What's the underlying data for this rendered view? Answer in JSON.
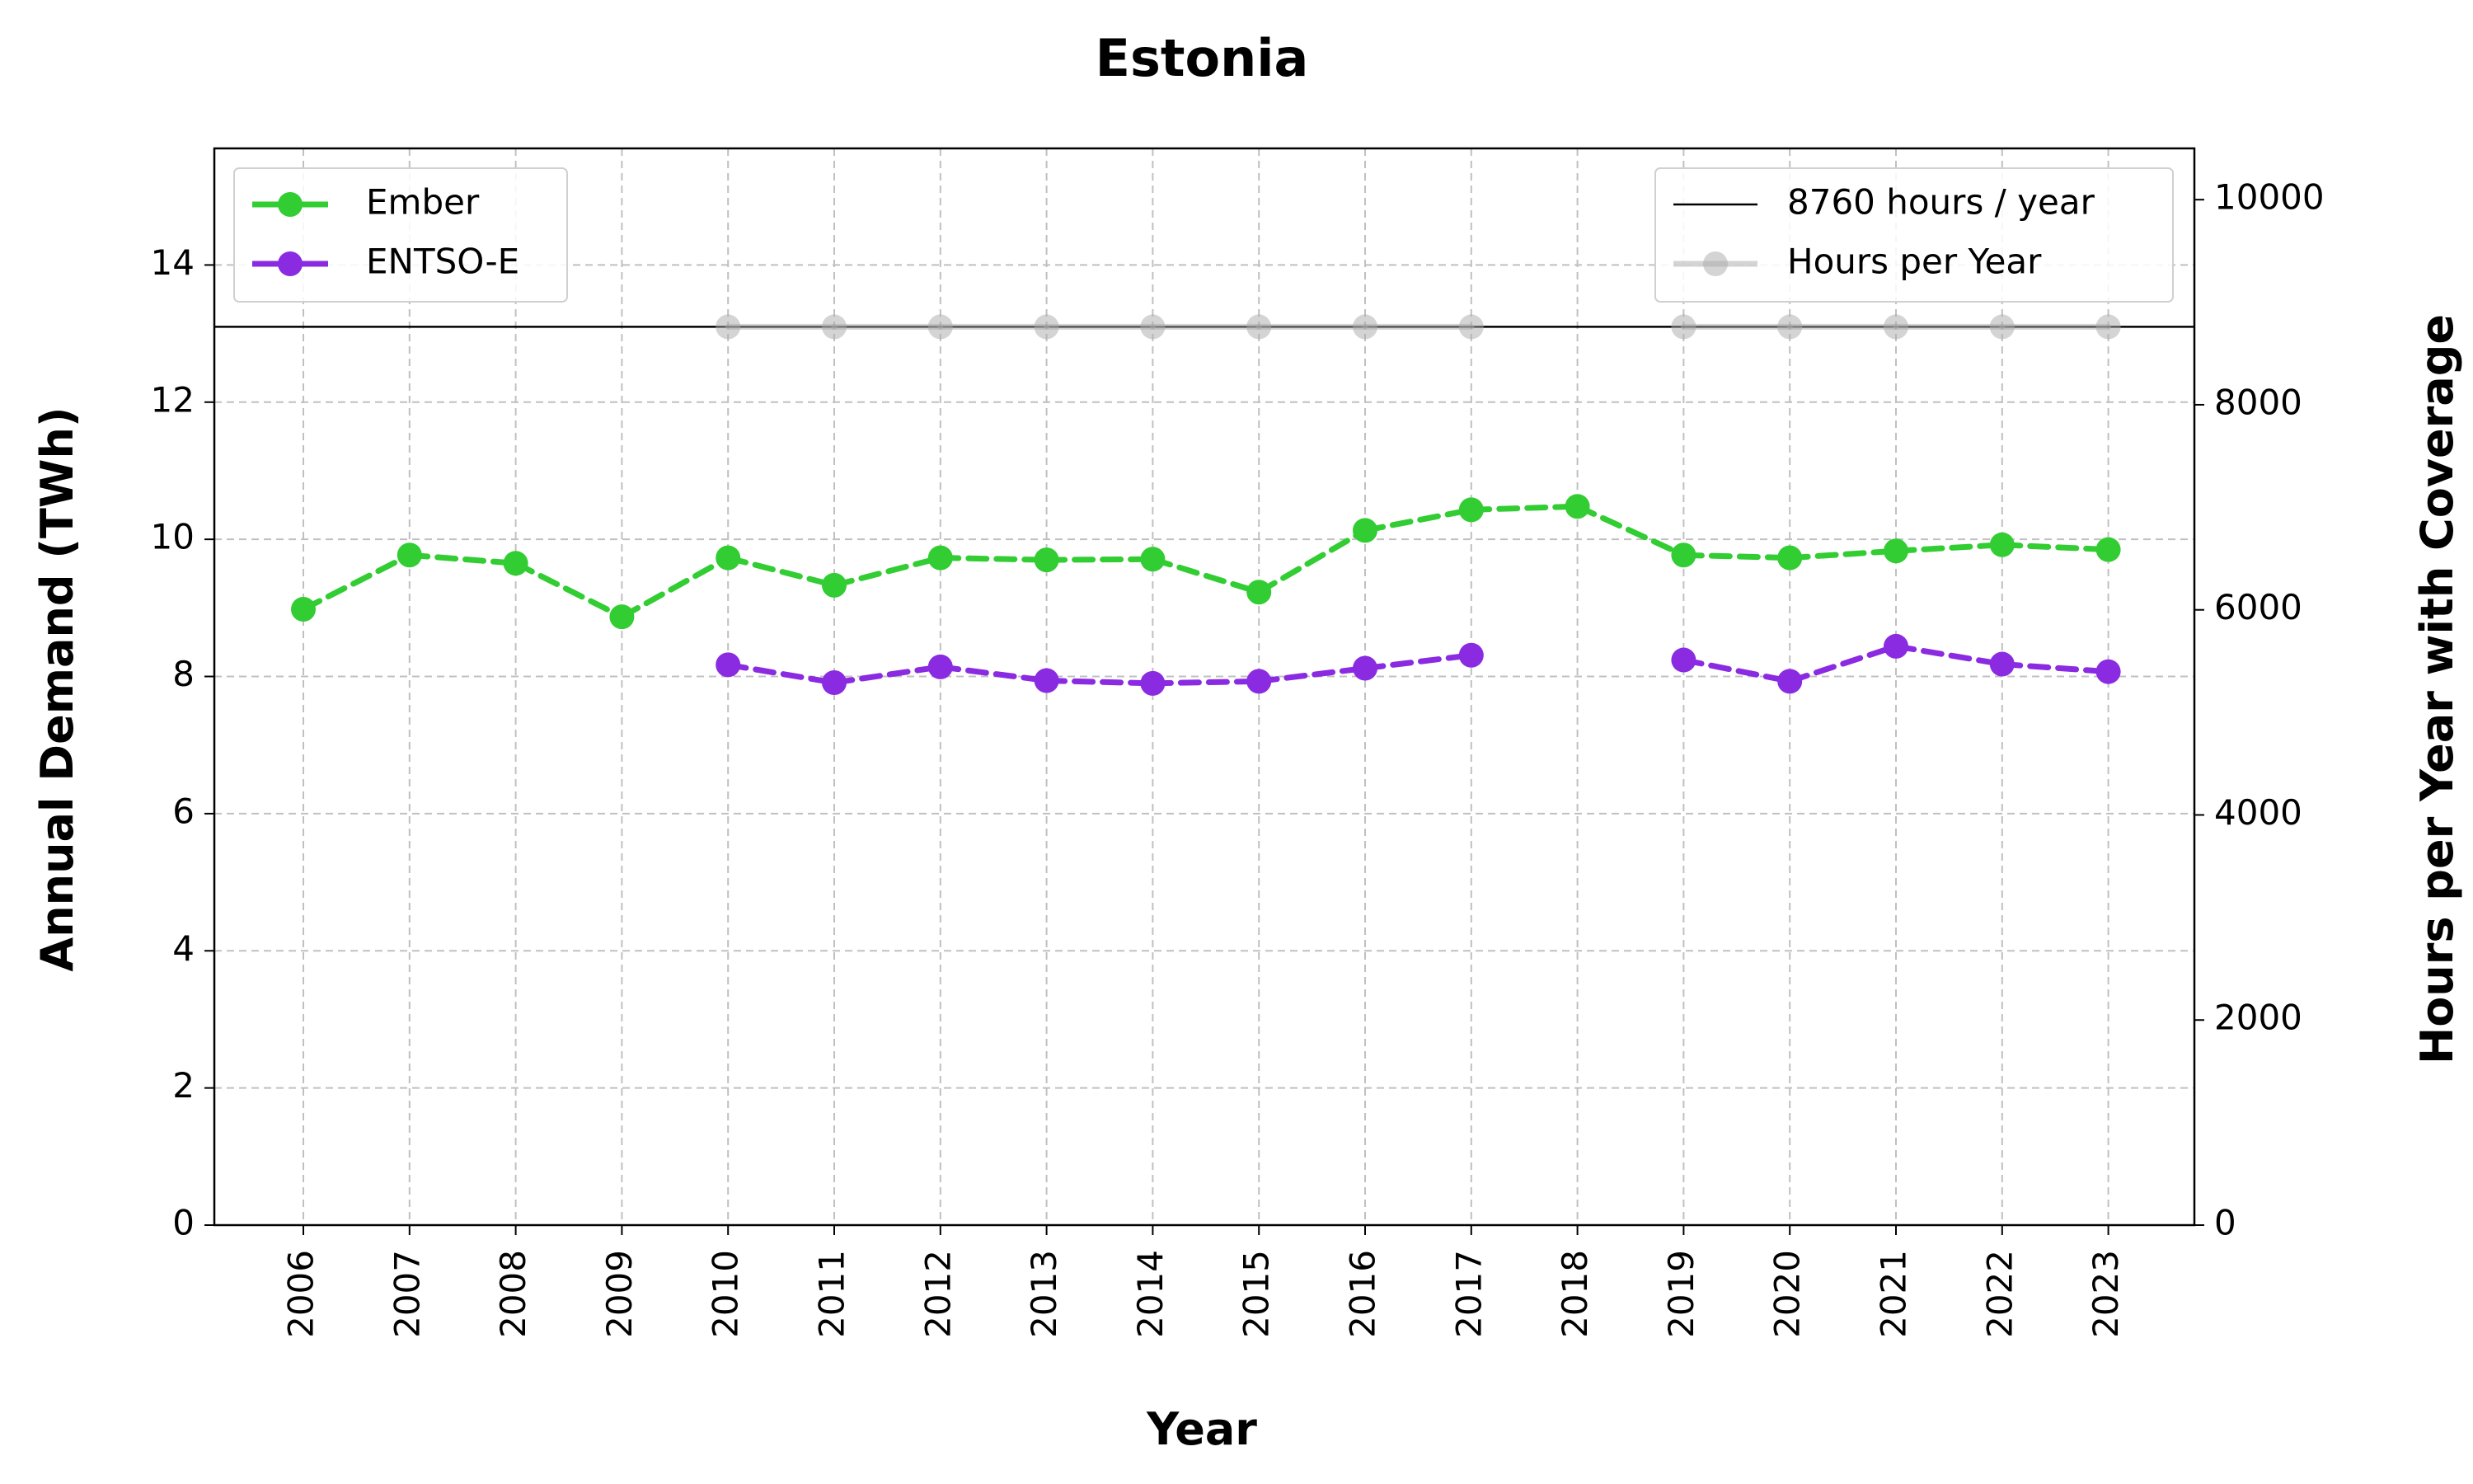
{
  "chart_data": {
    "type": "line",
    "title": "Estonia",
    "xlabel": "Year",
    "ylabel": "Annual Demand (TWh)",
    "y2label": "Hours per Year with Coverage",
    "categories": [
      "2006",
      "2007",
      "2008",
      "2009",
      "2010",
      "2011",
      "2012",
      "2013",
      "2014",
      "2015",
      "2016",
      "2017",
      "2018",
      "2019",
      "2020",
      "2021",
      "2022",
      "2023"
    ],
    "ylim": [
      0,
      15.7
    ],
    "yticks": [
      0,
      2,
      4,
      6,
      8,
      10,
      12,
      14
    ],
    "y2lim": [
      0,
      10500
    ],
    "y2ticks": [
      0,
      2000,
      4000,
      6000,
      8000,
      10000
    ],
    "grid": true,
    "reference_line": {
      "name": "8760 hours / year",
      "value": 8760,
      "axis": "right",
      "color": "#000000"
    },
    "series": [
      {
        "name": "Ember",
        "axis": "left",
        "color": "#32cd32",
        "style": "dashed",
        "marker": "circle",
        "values": [
          8.98,
          9.77,
          9.65,
          8.87,
          9.73,
          9.33,
          9.73,
          9.7,
          9.71,
          9.23,
          10.13,
          10.43,
          10.48,
          9.77,
          9.73,
          9.83,
          9.92,
          9.85
        ]
      },
      {
        "name": "ENTSO-E",
        "axis": "left",
        "color": "#8a2be2",
        "style": "dashed",
        "marker": "circle",
        "values": [
          null,
          null,
          null,
          null,
          8.17,
          7.91,
          8.14,
          7.94,
          7.9,
          7.93,
          8.12,
          8.31,
          null,
          8.24,
          7.93,
          8.44,
          8.18,
          8.07
        ]
      },
      {
        "name": "Hours per Year",
        "axis": "right",
        "color": "#a9a9a9",
        "style": "solid",
        "marker": "circle",
        "alpha": 0.5,
        "values": [
          null,
          null,
          null,
          null,
          8760,
          8760,
          8760,
          8760,
          8760,
          8760,
          8760,
          8760,
          null,
          8760,
          8760,
          8760,
          8760,
          8760
        ]
      }
    ],
    "legends": [
      {
        "placement": "top-left",
        "entries": [
          "Ember",
          "ENTSO-E"
        ]
      },
      {
        "placement": "top-right",
        "entries": [
          "8760 hours / year",
          "Hours per Year"
        ]
      }
    ]
  }
}
